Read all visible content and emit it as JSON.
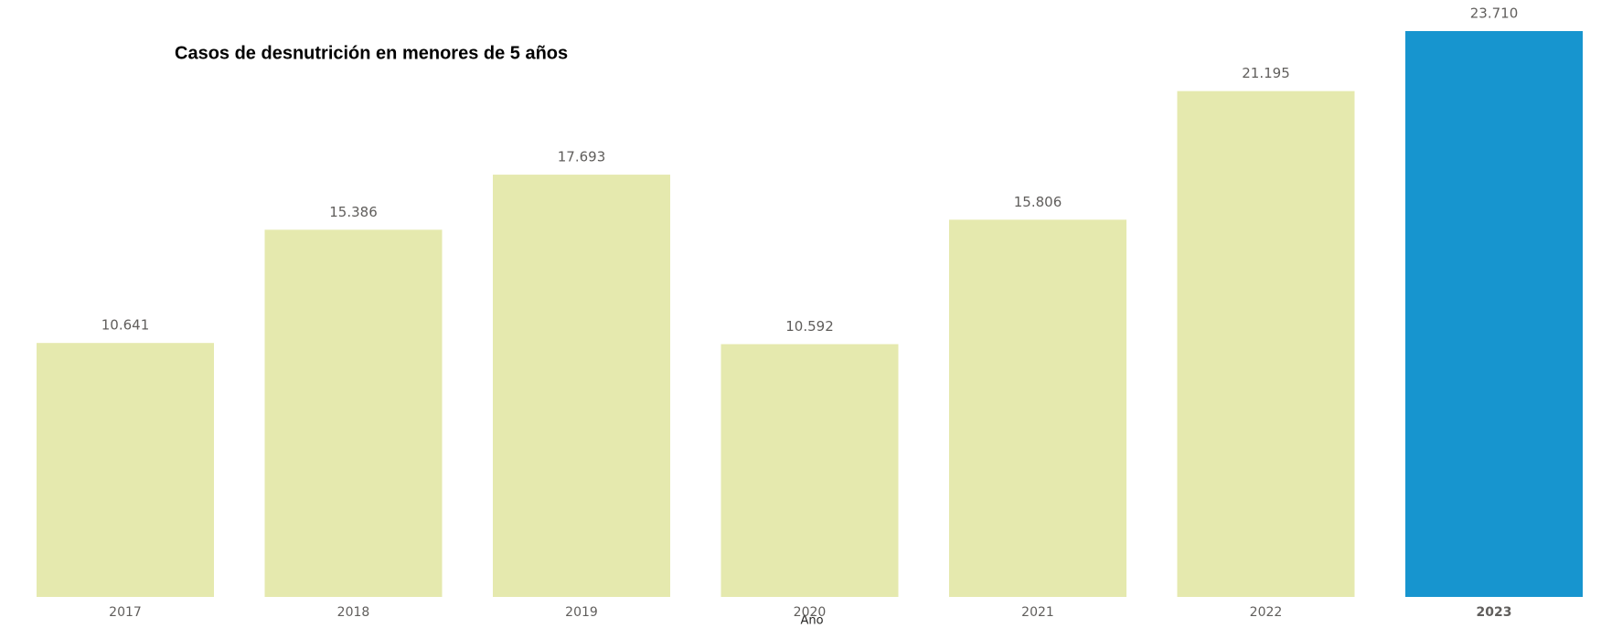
{
  "chart_data": {
    "type": "bar",
    "title": "Casos de desnutrición en menores de 5 años",
    "x_label": "Año",
    "categories": [
      "2017",
      "2018",
      "2019",
      "2020",
      "2021",
      "2022",
      "2023"
    ],
    "values": [
      10641,
      15386,
      17693,
      10592,
      15806,
      21195,
      23710
    ],
    "value_labels": [
      "10.641",
      "15.386",
      "17.693",
      "10.592",
      "15.806",
      "21.195",
      "23.710"
    ],
    "colors": [
      "#e5e9ae",
      "#e5e9ae",
      "#e5e9ae",
      "#e5e9ae",
      "#e5e9ae",
      "#e5e9ae",
      "#1795cf"
    ]
  }
}
